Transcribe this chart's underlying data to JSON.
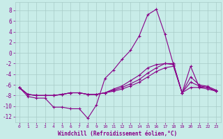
{
  "xlabel": "Windchill (Refroidissement éolien,°C)",
  "xlim": [
    -0.5,
    23.5
  ],
  "ylim": [
    -13.0,
    9.5
  ],
  "yticks": [
    -12,
    -10,
    -8,
    -6,
    -4,
    -2,
    0,
    2,
    4,
    6,
    8
  ],
  "xticks": [
    0,
    1,
    2,
    3,
    4,
    5,
    6,
    7,
    8,
    9,
    10,
    11,
    12,
    13,
    14,
    15,
    16,
    17,
    18,
    19,
    20,
    21,
    22,
    23
  ],
  "bg_color": "#c8ece8",
  "line_color": "#880088",
  "grid_color": "#a8ccc8",
  "line_main": [
    -6.5,
    -8.2,
    -8.5,
    -8.5,
    -10.2,
    -10.2,
    -10.5,
    -10.5,
    -12.3,
    -9.8,
    -4.8,
    -3.2,
    -1.2,
    0.5,
    3.2,
    7.2,
    8.2,
    3.5,
    -2.2,
    -7.5,
    -2.5,
    -6.4,
    -6.5,
    -7.2
  ],
  "line2": [
    -6.5,
    -7.8,
    -8.0,
    -8.0,
    -8.0,
    -7.8,
    -7.5,
    -7.5,
    -7.8,
    -7.8,
    -7.5,
    -7.2,
    -6.8,
    -6.2,
    -5.5,
    -4.5,
    -3.5,
    -2.8,
    -2.5,
    -7.5,
    -6.5,
    -6.5,
    -6.8,
    -7.2
  ],
  "line3": [
    -6.5,
    -7.8,
    -8.0,
    -8.0,
    -8.0,
    -7.8,
    -7.5,
    -7.5,
    -7.8,
    -7.8,
    -7.5,
    -7.0,
    -6.5,
    -5.8,
    -5.0,
    -3.8,
    -2.8,
    -2.0,
    -2.2,
    -7.5,
    -5.5,
    -6.2,
    -6.5,
    -7.2
  ],
  "line4": [
    -6.5,
    -7.8,
    -8.0,
    -8.0,
    -8.0,
    -7.8,
    -7.5,
    -7.5,
    -7.8,
    -7.8,
    -7.5,
    -6.8,
    -6.2,
    -5.2,
    -4.2,
    -2.8,
    -2.2,
    -2.0,
    -2.0,
    -7.5,
    -4.5,
    -6.0,
    -6.3,
    -7.0
  ]
}
